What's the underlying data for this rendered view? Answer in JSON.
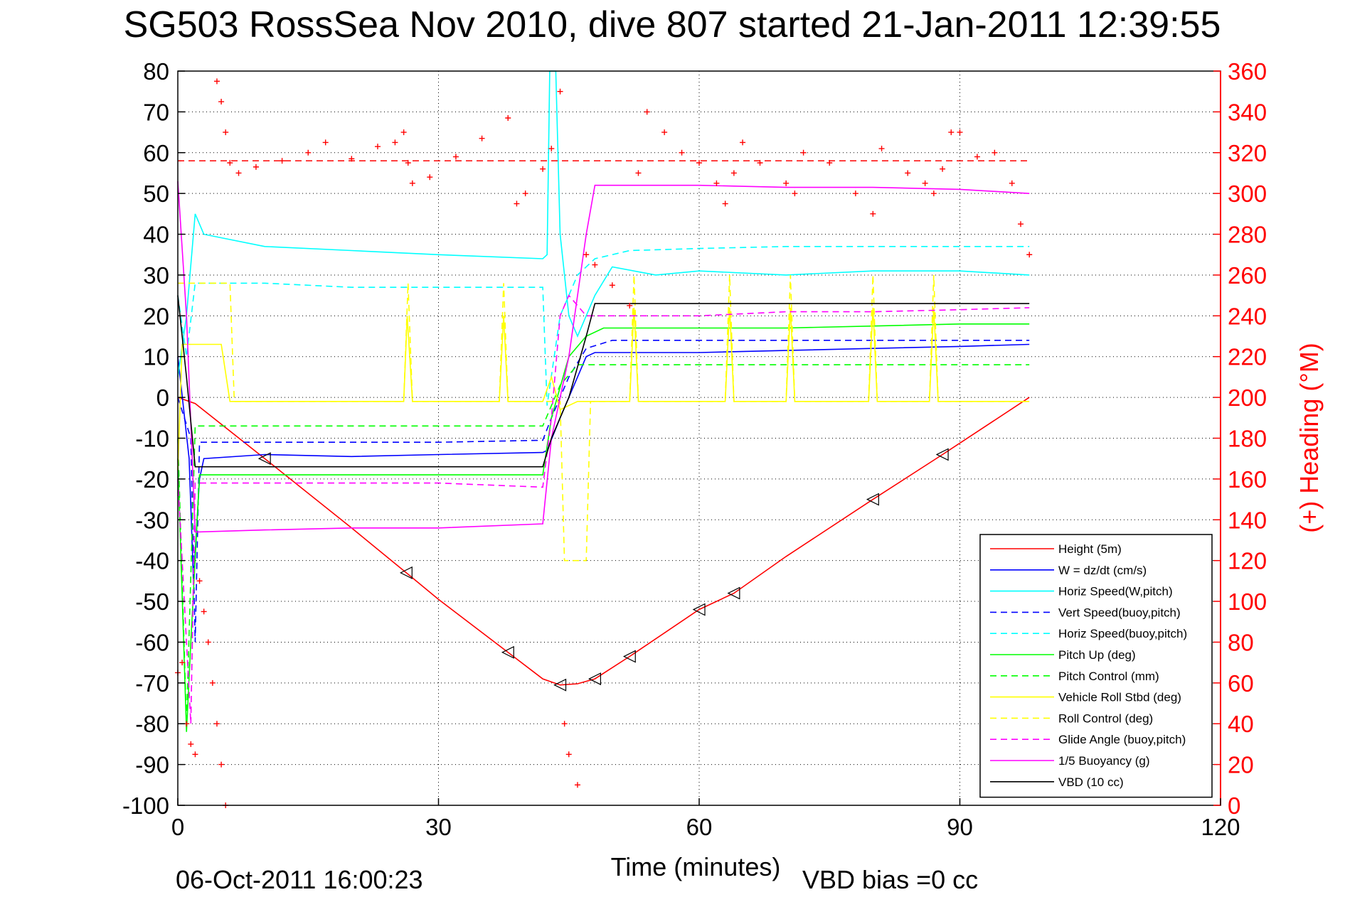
{
  "chart_data": {
    "type": "line",
    "title": "SG503 RossSea Nov 2010, dive 807 started 21-Jan-2011 12:39:55",
    "xlabel": "Time (minutes)",
    "ylabel_right": "(+) Heading (°M)",
    "footer_left": "06-Oct-2011 16:00:23",
    "footer_right": "VBD bias =0 cc",
    "xlim": [
      0,
      120
    ],
    "ylim": [
      -100,
      80
    ],
    "ylim_right": [
      0,
      360
    ],
    "x_ticks": [
      0,
      30,
      60,
      90,
      120
    ],
    "y_ticks": [
      80,
      70,
      60,
      50,
      40,
      30,
      20,
      10,
      0,
      -10,
      -20,
      -30,
      -40,
      -50,
      -60,
      -70,
      -80,
      -90,
      -100
    ],
    "y_ticks_right": [
      360,
      340,
      320,
      300,
      280,
      260,
      240,
      220,
      200,
      180,
      160,
      140,
      120,
      100,
      80,
      60,
      40,
      20,
      0
    ],
    "grid": true,
    "legend_position": "bottom-right",
    "colors": {
      "red": "#ff0000",
      "blue": "#0000ff",
      "cyan": "#00ffff",
      "green": "#00ff00",
      "yellow": "#ffff00",
      "magenta": "#ff00ff",
      "black": "#000000"
    },
    "series": [
      {
        "name": "Height (5m)",
        "color": "#ff0000",
        "dash": false,
        "points": [
          [
            0,
            0
          ],
          [
            2,
            -1.5
          ],
          [
            10,
            -15
          ],
          [
            20,
            -32
          ],
          [
            26.3,
            -43
          ],
          [
            30,
            -49.5
          ],
          [
            38,
            -62.5
          ],
          [
            42,
            -69
          ],
          [
            44,
            -70.5
          ],
          [
            46,
            -70.2
          ],
          [
            48,
            -69
          ],
          [
            52,
            -63.5
          ],
          [
            60,
            -52
          ],
          [
            64,
            -48
          ],
          [
            70,
            -39
          ],
          [
            80,
            -25
          ],
          [
            88,
            -14
          ],
          [
            98,
            0
          ]
        ]
      },
      {
        "name": "W = dz/dt (cm/s)",
        "color": "#0000ff",
        "dash": false,
        "points": [
          [
            0,
            10
          ],
          [
            1.3,
            -15
          ],
          [
            1.8,
            -45
          ],
          [
            2.5,
            -20
          ],
          [
            3,
            -15
          ],
          [
            10,
            -14
          ],
          [
            20,
            -14.5
          ],
          [
            30,
            -14
          ],
          [
            42,
            -13.5
          ],
          [
            42.5,
            -13
          ],
          [
            44,
            -5
          ],
          [
            45,
            0
          ],
          [
            46,
            5
          ],
          [
            47,
            10
          ],
          [
            48,
            11
          ],
          [
            60,
            11
          ],
          [
            70,
            11.5
          ],
          [
            80,
            12
          ],
          [
            90,
            12.5
          ],
          [
            98,
            13
          ]
        ]
      },
      {
        "name": "Horiz Speed(W,pitch)",
        "color": "#00ffff",
        "dash": false,
        "points": [
          [
            0,
            5
          ],
          [
            1,
            20
          ],
          [
            2,
            45
          ],
          [
            3,
            40
          ],
          [
            10,
            37
          ],
          [
            20,
            36
          ],
          [
            30,
            35
          ],
          [
            42,
            34
          ],
          [
            42.5,
            35
          ],
          [
            42.8,
            80
          ],
          [
            43.5,
            80
          ],
          [
            44,
            40
          ],
          [
            45,
            20
          ],
          [
            46,
            15
          ],
          [
            48,
            25
          ],
          [
            50,
            32
          ],
          [
            55,
            30
          ],
          [
            60,
            31
          ],
          [
            70,
            30
          ],
          [
            80,
            31
          ],
          [
            90,
            31
          ],
          [
            98,
            30
          ]
        ]
      },
      {
        "name": "Vert Speed(buoy,pitch)",
        "color": "#0000ff",
        "dash": true,
        "points": [
          [
            0,
            0
          ],
          [
            1.5,
            -10
          ],
          [
            2,
            -60
          ],
          [
            2.5,
            -11
          ],
          [
            10,
            -11
          ],
          [
            20,
            -11
          ],
          [
            30,
            -11
          ],
          [
            42,
            -10.5
          ],
          [
            43,
            -5
          ],
          [
            45,
            5
          ],
          [
            47,
            12
          ],
          [
            50,
            14
          ],
          [
            60,
            14
          ],
          [
            70,
            14
          ],
          [
            80,
            14
          ],
          [
            90,
            14
          ],
          [
            98,
            14
          ]
        ]
      },
      {
        "name": "Horiz Speed(buoy,pitch)",
        "color": "#00ffff",
        "dash": true,
        "points": [
          [
            0,
            25
          ],
          [
            1,
            10
          ],
          [
            2,
            28
          ],
          [
            10,
            28
          ],
          [
            20,
            27
          ],
          [
            30,
            27
          ],
          [
            42,
            27
          ],
          [
            42.5,
            -2
          ],
          [
            44,
            20
          ],
          [
            46,
            30
          ],
          [
            48,
            34
          ],
          [
            52,
            36
          ],
          [
            60,
            36.5
          ],
          [
            70,
            37
          ],
          [
            80,
            37
          ],
          [
            90,
            37
          ],
          [
            98,
            37
          ]
        ]
      },
      {
        "name": "Pitch Up (deg)",
        "color": "#00ff00",
        "dash": false,
        "points": [
          [
            0,
            -15
          ],
          [
            1,
            -82
          ],
          [
            1.5,
            -60
          ],
          [
            2.5,
            -19
          ],
          [
            10,
            -19
          ],
          [
            20,
            -19
          ],
          [
            30,
            -19
          ],
          [
            42,
            -19
          ],
          [
            43,
            -5
          ],
          [
            45,
            10
          ],
          [
            47,
            15
          ],
          [
            49,
            17
          ],
          [
            60,
            17
          ],
          [
            70,
            17
          ],
          [
            80,
            17.5
          ],
          [
            90,
            18
          ],
          [
            98,
            18
          ]
        ]
      },
      {
        "name": "Pitch Control (mm)",
        "color": "#00ff00",
        "dash": true,
        "points": [
          [
            0,
            -10
          ],
          [
            1,
            -80
          ],
          [
            2,
            -7
          ],
          [
            10,
            -7
          ],
          [
            20,
            -7
          ],
          [
            30,
            -7
          ],
          [
            42,
            -7
          ],
          [
            43,
            -2
          ],
          [
            44,
            3
          ],
          [
            46,
            8
          ],
          [
            48,
            8
          ],
          [
            60,
            8
          ],
          [
            70,
            8
          ],
          [
            80,
            8
          ],
          [
            90,
            8
          ],
          [
            98,
            8
          ]
        ]
      },
      {
        "name": "Vehicle Roll Stbd (deg)",
        "color": "#ffff00",
        "dash": false,
        "points": [
          [
            0,
            -18
          ],
          [
            0.5,
            13
          ],
          [
            5,
            13
          ],
          [
            6,
            -1
          ],
          [
            26,
            -1
          ],
          [
            26.4,
            20
          ],
          [
            27,
            -1
          ],
          [
            37,
            -1
          ],
          [
            37.5,
            20
          ],
          [
            38,
            -1
          ],
          [
            42,
            -1
          ],
          [
            43,
            5
          ],
          [
            44,
            -3
          ],
          [
            46,
            -1
          ],
          [
            52,
            -1
          ],
          [
            52.5,
            22
          ],
          [
            53,
            -1
          ],
          [
            63,
            -1
          ],
          [
            63.5,
            22
          ],
          [
            64,
            -1
          ],
          [
            70,
            -1
          ],
          [
            70.5,
            22
          ],
          [
            71,
            -1
          ],
          [
            79.5,
            -1
          ],
          [
            80,
            22
          ],
          [
            80.5,
            -1
          ],
          [
            86.5,
            -1
          ],
          [
            87,
            22
          ],
          [
            87.5,
            -1
          ],
          [
            98,
            -1
          ]
        ]
      },
      {
        "name": "Roll Control (deg)",
        "color": "#ffff00",
        "dash": true,
        "points": [
          [
            0,
            28
          ],
          [
            1,
            28
          ],
          [
            6,
            28
          ],
          [
            6.5,
            -1
          ],
          [
            26,
            -1
          ],
          [
            26.5,
            28
          ],
          [
            27,
            -1
          ],
          [
            37,
            -1
          ],
          [
            37.5,
            28
          ],
          [
            38,
            -1
          ],
          [
            42,
            -1
          ],
          [
            44,
            -1
          ],
          [
            44.5,
            -40
          ],
          [
            47,
            -40
          ],
          [
            47.5,
            -1
          ],
          [
            52,
            -1
          ],
          [
            52.5,
            30
          ],
          [
            53,
            -1
          ],
          [
            63,
            -1
          ],
          [
            63.5,
            30
          ],
          [
            64,
            -1
          ],
          [
            70,
            -1
          ],
          [
            70.5,
            30
          ],
          [
            71,
            -1
          ],
          [
            79.5,
            -1
          ],
          [
            80,
            30
          ],
          [
            80.5,
            -1
          ],
          [
            86.5,
            -1
          ],
          [
            87,
            30
          ],
          [
            87.5,
            -1
          ],
          [
            98,
            -1
          ]
        ]
      },
      {
        "name": "Glide Angle (buoy,pitch)",
        "color": "#ff00ff",
        "dash": true,
        "points": [
          [
            0,
            -20
          ],
          [
            1.5,
            -80
          ],
          [
            2,
            -21
          ],
          [
            10,
            -21
          ],
          [
            20,
            -21
          ],
          [
            30,
            -21
          ],
          [
            42,
            -22
          ],
          [
            43,
            -5
          ],
          [
            44,
            20
          ],
          [
            45,
            25
          ],
          [
            47,
            20
          ],
          [
            50,
            20
          ],
          [
            60,
            20
          ],
          [
            70,
            21
          ],
          [
            80,
            21
          ],
          [
            90,
            21.5
          ],
          [
            98,
            22
          ]
        ]
      },
      {
        "name": "1/5 Buoyancy (g)",
        "color": "#ff00ff",
        "dash": false,
        "points": [
          [
            0,
            53
          ],
          [
            1,
            20
          ],
          [
            2,
            -33
          ],
          [
            10,
            -32.5
          ],
          [
            20,
            -32
          ],
          [
            30,
            -32
          ],
          [
            42,
            -31
          ],
          [
            43,
            -10
          ],
          [
            45,
            10
          ],
          [
            47,
            40
          ],
          [
            48,
            52
          ],
          [
            60,
            52
          ],
          [
            70,
            51.5
          ],
          [
            80,
            51.5
          ],
          [
            90,
            51
          ],
          [
            98,
            50
          ]
        ]
      },
      {
        "name": "VBD (10 cc)",
        "color": "#000000",
        "dash": false,
        "points": [
          [
            0,
            25
          ],
          [
            1,
            5
          ],
          [
            2,
            -17
          ],
          [
            10,
            -17
          ],
          [
            20,
            -17
          ],
          [
            30,
            -17
          ],
          [
            42,
            -17
          ],
          [
            43,
            -10
          ],
          [
            45,
            0
          ],
          [
            47,
            15
          ],
          [
            48,
            23
          ],
          [
            60,
            23
          ],
          [
            70,
            23
          ],
          [
            80,
            23
          ],
          [
            90,
            23
          ],
          [
            98,
            23
          ]
        ]
      }
    ],
    "heading": {
      "name": "(+) Heading",
      "color": "#ff0000",
      "marker": "+",
      "target": 316,
      "points": [
        [
          0,
          65
        ],
        [
          0.5,
          70
        ],
        [
          1,
          40
        ],
        [
          1.5,
          30
        ],
        [
          2,
          25
        ],
        [
          2.5,
          110
        ],
        [
          3,
          95
        ],
        [
          3.5,
          80
        ],
        [
          4,
          60
        ],
        [
          4.5,
          40
        ],
        [
          5,
          20
        ],
        [
          5.5,
          0
        ],
        [
          4.5,
          355
        ],
        [
          5,
          345
        ],
        [
          5.5,
          330
        ],
        [
          6,
          315
        ],
        [
          7,
          310
        ],
        [
          9,
          313
        ],
        [
          12,
          316
        ],
        [
          15,
          320
        ],
        [
          17,
          325
        ],
        [
          20,
          317
        ],
        [
          23,
          323
        ],
        [
          25,
          325
        ],
        [
          26,
          330
        ],
        [
          26.5,
          315
        ],
        [
          27,
          305
        ],
        [
          29,
          308
        ],
        [
          32,
          318
        ],
        [
          35,
          327
        ],
        [
          38,
          337
        ],
        [
          39,
          295
        ],
        [
          40,
          300
        ],
        [
          42,
          312
        ],
        [
          43,
          322
        ],
        [
          44,
          350
        ],
        [
          44.5,
          40
        ],
        [
          45,
          25
        ],
        [
          46,
          10
        ],
        [
          47,
          270
        ],
        [
          48,
          265
        ],
        [
          50,
          255
        ],
        [
          52,
          245
        ],
        [
          53,
          310
        ],
        [
          54,
          340
        ],
        [
          56,
          330
        ],
        [
          58,
          320
        ],
        [
          60,
          315
        ],
        [
          62,
          305
        ],
        [
          63,
          295
        ],
        [
          64,
          310
        ],
        [
          65,
          325
        ],
        [
          67,
          315
        ],
        [
          70,
          305
        ],
        [
          71,
          300
        ],
        [
          72,
          320
        ],
        [
          75,
          315
        ],
        [
          78,
          300
        ],
        [
          80,
          290
        ],
        [
          81,
          322
        ],
        [
          84,
          310
        ],
        [
          86,
          305
        ],
        [
          87,
          300
        ],
        [
          88,
          312
        ],
        [
          89,
          330
        ],
        [
          90,
          330
        ],
        [
          92,
          318
        ],
        [
          94,
          320
        ],
        [
          96,
          305
        ],
        [
          97,
          285
        ],
        [
          98,
          270
        ]
      ]
    }
  }
}
